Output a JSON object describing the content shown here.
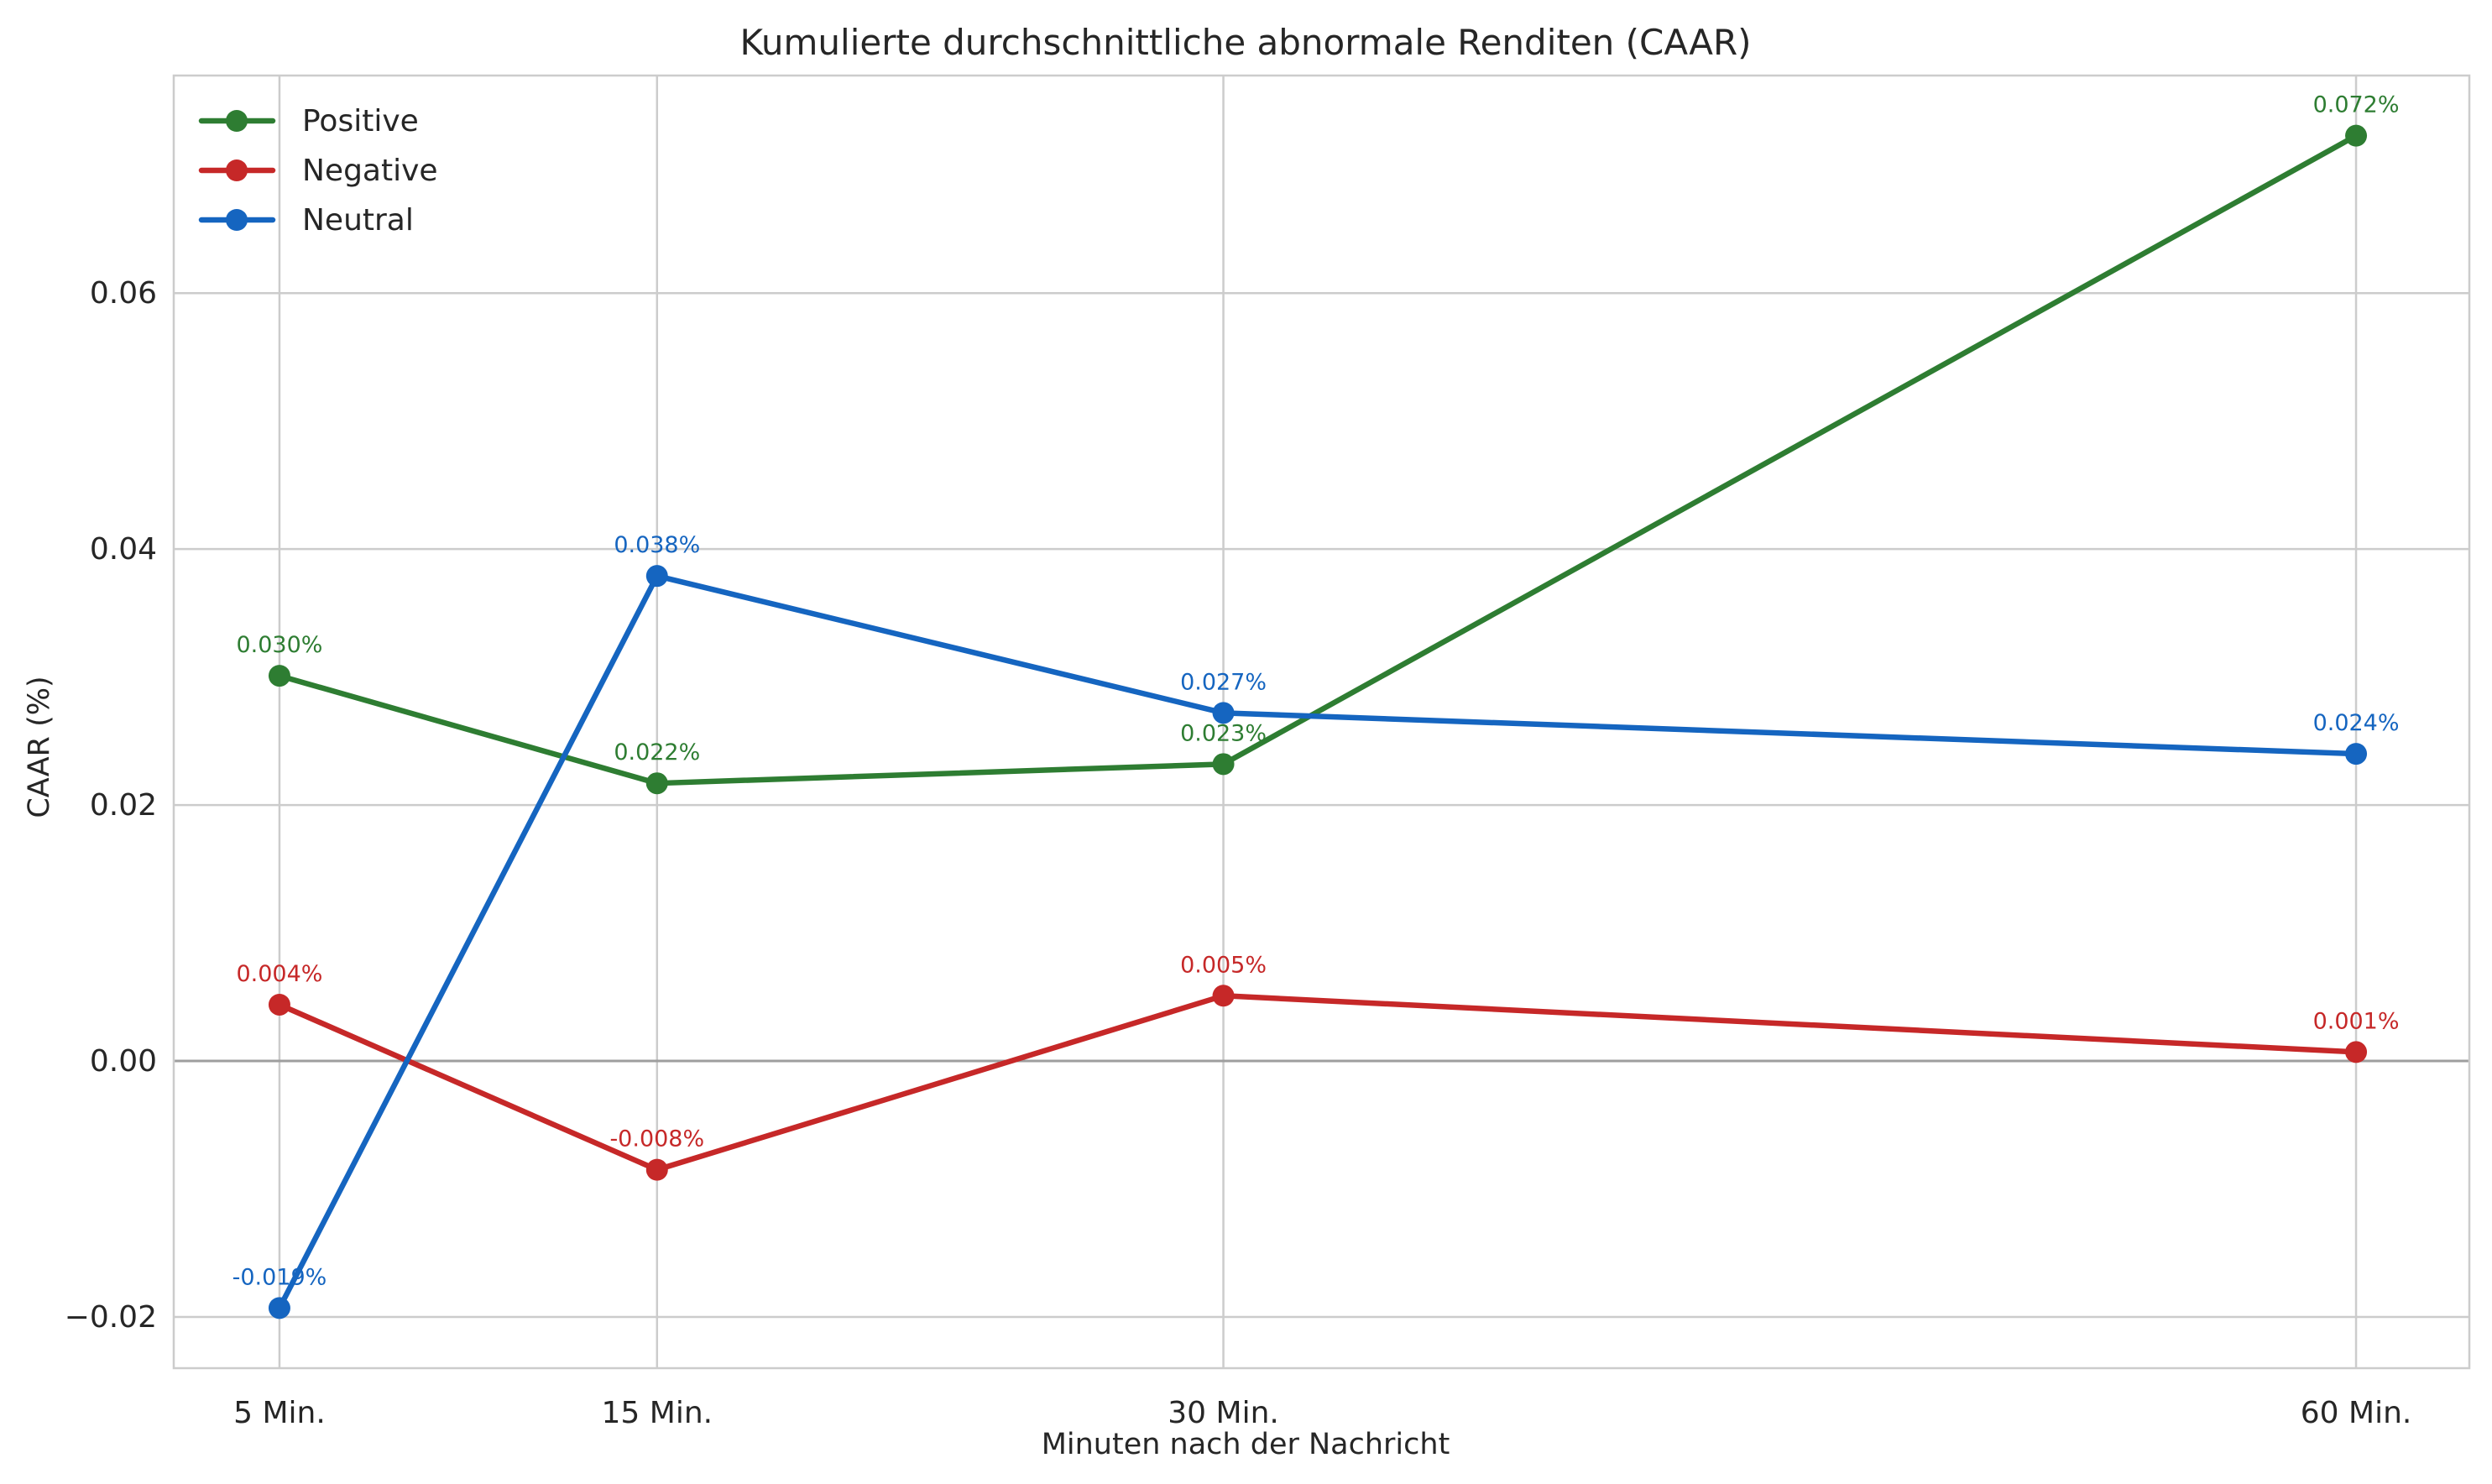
{
  "chart_data": {
    "type": "line",
    "title": "Kumulierte durchschnittliche abnormale Renditen (CAAR)",
    "xlabel": "Minuten nach der Nachricht",
    "ylabel": "CAAR (%)",
    "x": [
      5,
      15,
      30,
      60
    ],
    "categories": [
      "5 Min.",
      "15 Min.",
      "30 Min.",
      "60 Min."
    ],
    "xlim": [
      2.2,
      63.0
    ],
    "ylim": [
      -0.024,
      0.077
    ],
    "yticks": [
      -0.02,
      0.0,
      0.02,
      0.04,
      0.06
    ],
    "ytick_labels": [
      "−0.02",
      "0.00",
      "0.02",
      "0.04",
      "0.06"
    ],
    "grid": true,
    "zero_line": true,
    "legend_position": "top-left",
    "series": [
      {
        "name": "Positive",
        "color": "#2e7d32",
        "values": [
          0.0301,
          0.0217,
          0.0232,
          0.0723
        ],
        "labels": [
          "0.030%",
          "0.022%",
          "0.023%",
          "0.072%"
        ]
      },
      {
        "name": "Negative",
        "color": "#c62828",
        "values": [
          0.0044,
          -0.0085,
          0.0051,
          0.0007
        ],
        "labels": [
          "0.004%",
          "-0.008%",
          "0.005%",
          "0.001%"
        ]
      },
      {
        "name": "Neutral",
        "color": "#1565c0",
        "values": [
          -0.0193,
          0.0379,
          0.0272,
          0.024
        ],
        "labels": [
          "-0.019%",
          "0.038%",
          "0.027%",
          "0.024%"
        ]
      }
    ]
  }
}
